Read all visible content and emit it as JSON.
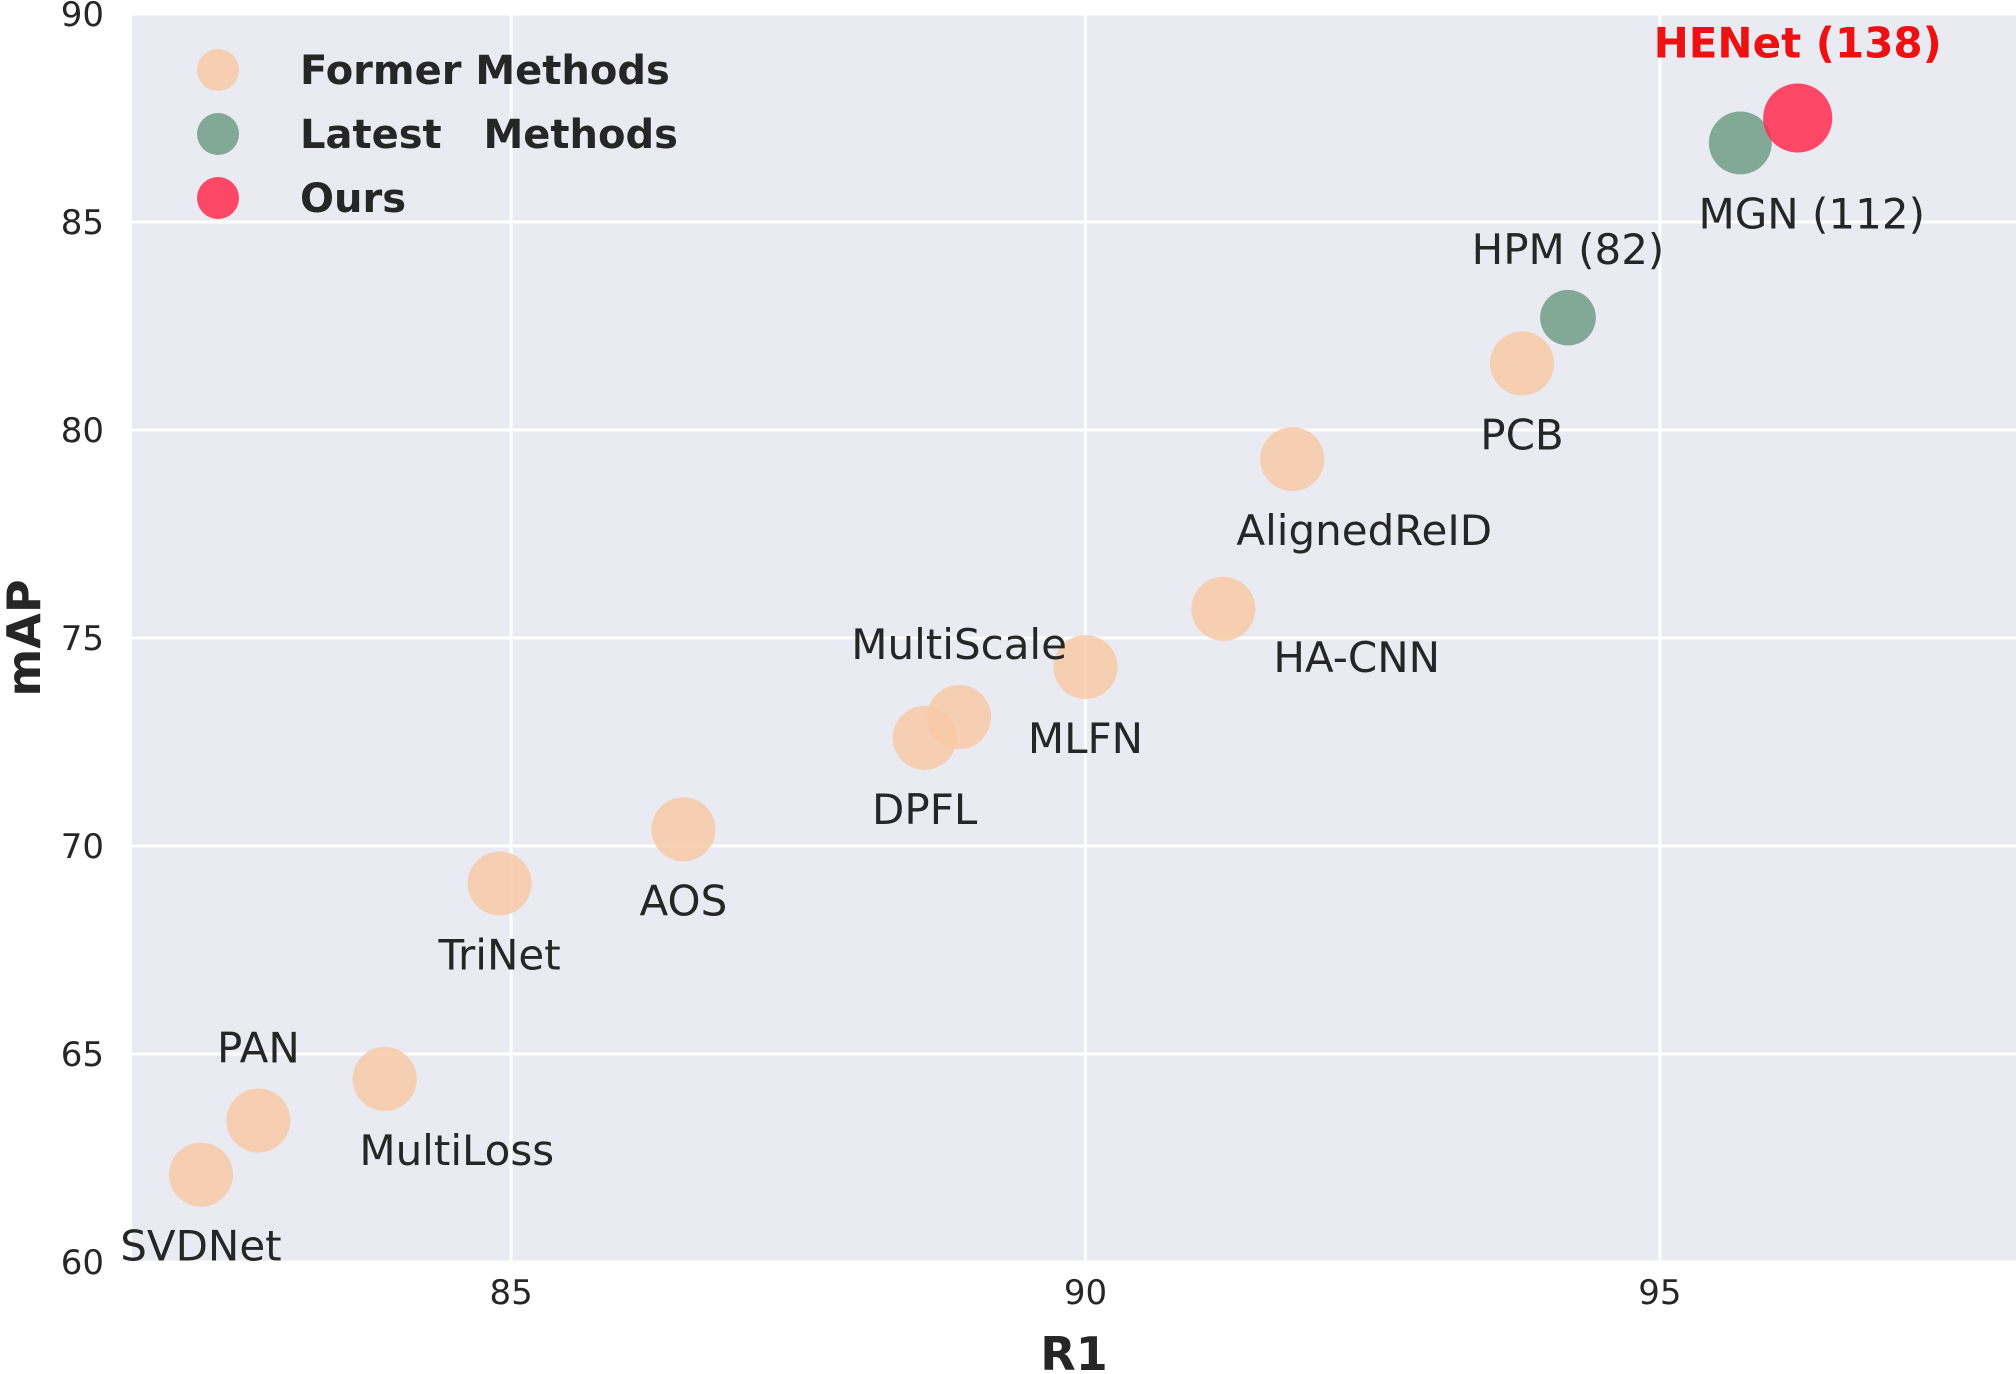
{
  "chart_data": {
    "type": "scatter",
    "title": "",
    "xlabel": "R1",
    "ylabel": "mAP",
    "xlim": [
      81.7,
      98.1
    ],
    "ylim": [
      60,
      90
    ],
    "xticks": [
      85,
      90,
      95
    ],
    "yticks": [
      60,
      65,
      70,
      75,
      80,
      85,
      90
    ],
    "grid": true,
    "legend": {
      "placement": "top-left",
      "entries": [
        {
          "name": "Former Methods",
          "color": "#f8c9a6"
        },
        {
          "name": "Latest   Methods",
          "color": "#6f9e86"
        },
        {
          "name": "Ours",
          "color": "#ff2a4f"
        }
      ]
    },
    "points": [
      {
        "label": "SVDNet",
        "x": 82.3,
        "y": 62.1,
        "group": "Former Methods",
        "label_pos": "below"
      },
      {
        "label": "PAN",
        "x": 82.8,
        "y": 63.4,
        "group": "Former Methods",
        "label_pos": "above"
      },
      {
        "label": "MultiLoss",
        "x": 83.9,
        "y": 64.4,
        "group": "Former Methods",
        "label_pos": "below-right"
      },
      {
        "label": "TriNet",
        "x": 84.9,
        "y": 69.1,
        "group": "Former Methods",
        "label_pos": "below"
      },
      {
        "label": "AOS",
        "x": 86.5,
        "y": 70.4,
        "group": "Former Methods",
        "label_pos": "below"
      },
      {
        "label": "DPFL",
        "x": 88.6,
        "y": 72.6,
        "group": "Former Methods",
        "label_pos": "below"
      },
      {
        "label": "MultiScale",
        "x": 88.9,
        "y": 73.1,
        "group": "Former Methods",
        "label_pos": "above"
      },
      {
        "label": "MLFN",
        "x": 90.0,
        "y": 74.3,
        "group": "Former Methods",
        "label_pos": "below"
      },
      {
        "label": "HA-CNN",
        "x": 91.2,
        "y": 75.7,
        "group": "Former Methods",
        "label_pos": "right"
      },
      {
        "label": "AlignedReID",
        "x": 91.8,
        "y": 79.3,
        "group": "Former Methods",
        "label_pos": "below-right"
      },
      {
        "label": "PCB",
        "x": 93.8,
        "y": 81.6,
        "group": "Former Methods",
        "label_pos": "below"
      },
      {
        "label": "HPM (82)",
        "x": 94.2,
        "y": 82.7,
        "group": "Latest   Methods",
        "size": 82,
        "label_pos": "above"
      },
      {
        "label": "MGN (112)",
        "x": 95.7,
        "y": 86.9,
        "group": "Latest   Methods",
        "size": 112,
        "label_pos": "below-right"
      },
      {
        "label": "HENet (138)",
        "x": 96.2,
        "y": 87.5,
        "group": "Ours",
        "size": 138,
        "label_pos": "above"
      }
    ],
    "colors": {
      "plot_background": "#eaeaf2",
      "grid": "#ffffff",
      "ours_label": "#ee1111"
    }
  }
}
